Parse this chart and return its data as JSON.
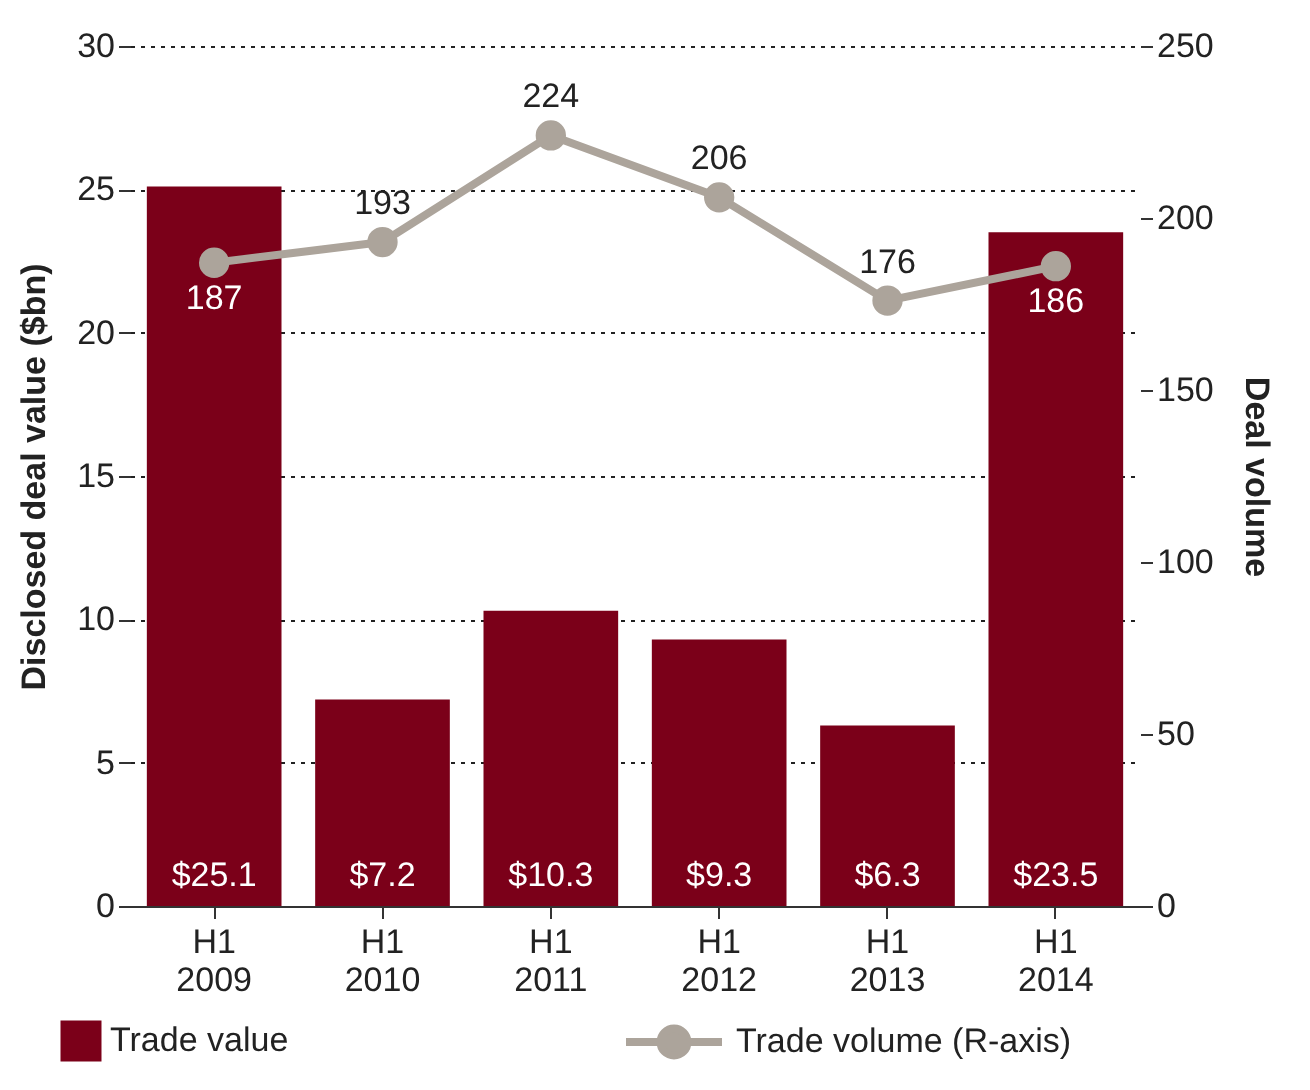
{
  "chart_data": {
    "type": "bar",
    "ylabel": "Disclosed deal value ($bn)",
    "y2label": "Deal volume",
    "categories": [
      "H1 2009",
      "H1 2010",
      "H1 2011",
      "H1 2012",
      "H1 2013",
      "H1 2014"
    ],
    "series": [
      {
        "name": "Trade value",
        "color": "#7b0019",
        "values": [
          25.1,
          7.2,
          10.3,
          9.3,
          6.3,
          23.5
        ],
        "value_labels": [
          "$25.1",
          "$7.2",
          "$10.3",
          "$9.3",
          "$6.3",
          "$23.5"
        ]
      },
      {
        "name": "Trade volume (R-axis)",
        "type": "line",
        "axis": "y2",
        "color": "#aca49b",
        "marker": "circle",
        "data_labels": true,
        "values": [
          187,
          193,
          224,
          206,
          176,
          186
        ]
      }
    ],
    "ylim": [
      0,
      30
    ],
    "yticks": [
      0,
      5,
      10,
      15,
      20,
      25,
      30
    ],
    "y2lim": [
      0,
      250
    ],
    "y2ticks": [
      0,
      50,
      100,
      150,
      200,
      250
    ],
    "grid": "y",
    "legend": "bottom"
  }
}
